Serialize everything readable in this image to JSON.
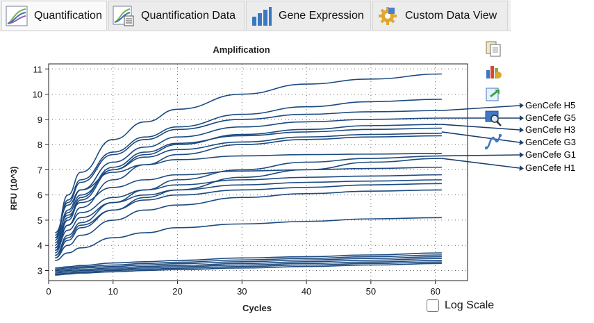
{
  "tabs": [
    {
      "label": "Quantification",
      "icon": "amplification-curves-icon",
      "active": true
    },
    {
      "label": "Quantification Data",
      "icon": "quantification-data-icon",
      "active": false
    },
    {
      "label": "Gene Expression",
      "icon": "bar-chart-icon",
      "active": false
    },
    {
      "label": "Custom Data View",
      "icon": "gear-puzzle-icon",
      "active": false
    }
  ],
  "chart_data": {
    "type": "line",
    "title": "Amplification",
    "xlabel": "Cycles",
    "ylabel": "RFU (10^3)",
    "xlim": [
      0,
      65
    ],
    "ylim": [
      2.6,
      11.2
    ],
    "x_ticks": [
      0,
      10,
      20,
      30,
      40,
      50,
      60
    ],
    "y_ticks": [
      3,
      4,
      5,
      6,
      7,
      8,
      9,
      10,
      11
    ],
    "grid": true,
    "x": [
      1,
      3,
      5,
      10,
      15,
      20,
      30,
      40,
      50,
      61
    ],
    "series": [
      {
        "values": [
          4.3,
          6.0,
          6.9,
          8.2,
          8.9,
          9.4,
          10.0,
          10.4,
          10.6,
          10.8
        ]
      },
      {
        "values": [
          4.2,
          5.8,
          6.6,
          7.7,
          8.3,
          8.7,
          9.2,
          9.5,
          9.7,
          9.8
        ]
      },
      {
        "values": [
          4.4,
          5.7,
          6.5,
          7.6,
          8.2,
          8.6,
          9.0,
          9.2,
          9.3,
          9.35
        ]
      },
      {
        "values": [
          4.0,
          5.4,
          6.2,
          7.3,
          7.9,
          8.3,
          8.7,
          8.9,
          9.0,
          9.05
        ]
      },
      {
        "values": [
          3.8,
          5.0,
          5.8,
          7.0,
          7.6,
          8.0,
          8.4,
          8.6,
          8.75,
          8.8
        ]
      },
      {
        "values": [
          3.9,
          5.1,
          5.9,
          7.1,
          7.7,
          8.05,
          8.35,
          8.5,
          8.6,
          8.65
        ]
      },
      {
        "values": [
          4.1,
          5.3,
          6.0,
          7.0,
          7.5,
          7.8,
          8.1,
          8.3,
          8.4,
          8.45
        ]
      },
      {
        "values": [
          3.7,
          4.8,
          5.5,
          6.6,
          7.2,
          7.6,
          8.0,
          8.2,
          8.3,
          8.35
        ]
      },
      {
        "values": [
          4.5,
          5.6,
          6.2,
          6.9,
          7.2,
          7.4,
          7.55,
          7.6,
          7.62,
          7.65
        ]
      },
      {
        "values": [
          3.6,
          4.4,
          4.9,
          5.7,
          6.2,
          6.6,
          7.0,
          7.3,
          7.45,
          7.55
        ]
      },
      {
        "values": [
          3.5,
          4.2,
          4.7,
          5.4,
          5.9,
          6.2,
          6.7,
          7.0,
          7.3,
          7.45
        ]
      },
      {
        "values": [
          4.3,
          5.2,
          5.7,
          6.3,
          6.6,
          6.8,
          6.95,
          7.0,
          7.05,
          7.1
        ]
      },
      {
        "values": [
          3.9,
          4.8,
          5.3,
          5.9,
          6.2,
          6.4,
          6.6,
          6.7,
          6.75,
          6.8
        ]
      },
      {
        "values": [
          3.8,
          4.6,
          5.1,
          5.7,
          6.0,
          6.2,
          6.4,
          6.5,
          6.55,
          6.6
        ]
      },
      {
        "values": [
          3.6,
          4.3,
          4.8,
          5.4,
          5.8,
          6.0,
          6.2,
          6.3,
          6.4,
          6.45
        ]
      },
      {
        "values": [
          3.5,
          4.0,
          4.4,
          5.0,
          5.4,
          5.6,
          5.9,
          6.05,
          6.15,
          6.2
        ]
      },
      {
        "values": [
          3.4,
          3.7,
          3.9,
          4.3,
          4.5,
          4.7,
          4.85,
          4.95,
          5.05,
          5.1
        ]
      },
      {
        "values": [
          3.1,
          3.15,
          3.2,
          3.3,
          3.35,
          3.4,
          3.5,
          3.55,
          3.62,
          3.7
        ]
      },
      {
        "values": [
          3.05,
          3.1,
          3.15,
          3.22,
          3.28,
          3.33,
          3.42,
          3.48,
          3.55,
          3.62
        ]
      },
      {
        "values": [
          3.0,
          3.05,
          3.1,
          3.16,
          3.22,
          3.27,
          3.35,
          3.42,
          3.48,
          3.55
        ]
      },
      {
        "values": [
          2.95,
          3.0,
          3.04,
          3.1,
          3.16,
          3.2,
          3.28,
          3.35,
          3.41,
          3.48
        ]
      },
      {
        "values": [
          2.9,
          2.95,
          2.99,
          3.05,
          3.1,
          3.15,
          3.22,
          3.28,
          3.34,
          3.4
        ]
      },
      {
        "values": [
          2.85,
          2.9,
          2.94,
          3.0,
          3.05,
          3.09,
          3.16,
          3.22,
          3.28,
          3.34
        ]
      },
      {
        "values": [
          2.82,
          2.86,
          2.9,
          2.95,
          3.0,
          3.04,
          3.1,
          3.16,
          3.22,
          3.28
        ]
      }
    ]
  },
  "annotations": [
    {
      "label": "GenCefe H5",
      "value": 9.35
    },
    {
      "label": "GenCefe G5",
      "value": 9.05
    },
    {
      "label": "GenCefe H3",
      "value": 8.8
    },
    {
      "label": "GenCefe G3",
      "value": 8.5
    },
    {
      "label": "GenCefe G1",
      "value": 7.55
    },
    {
      "label": "GenCefe H1",
      "value": 7.45
    }
  ],
  "log_scale": {
    "label": "Log Scale",
    "checked": false
  },
  "colors": {
    "curve": "#1c4a80",
    "annotation_arrow": "#1a3f6f",
    "tab_active": "#fafafa"
  }
}
